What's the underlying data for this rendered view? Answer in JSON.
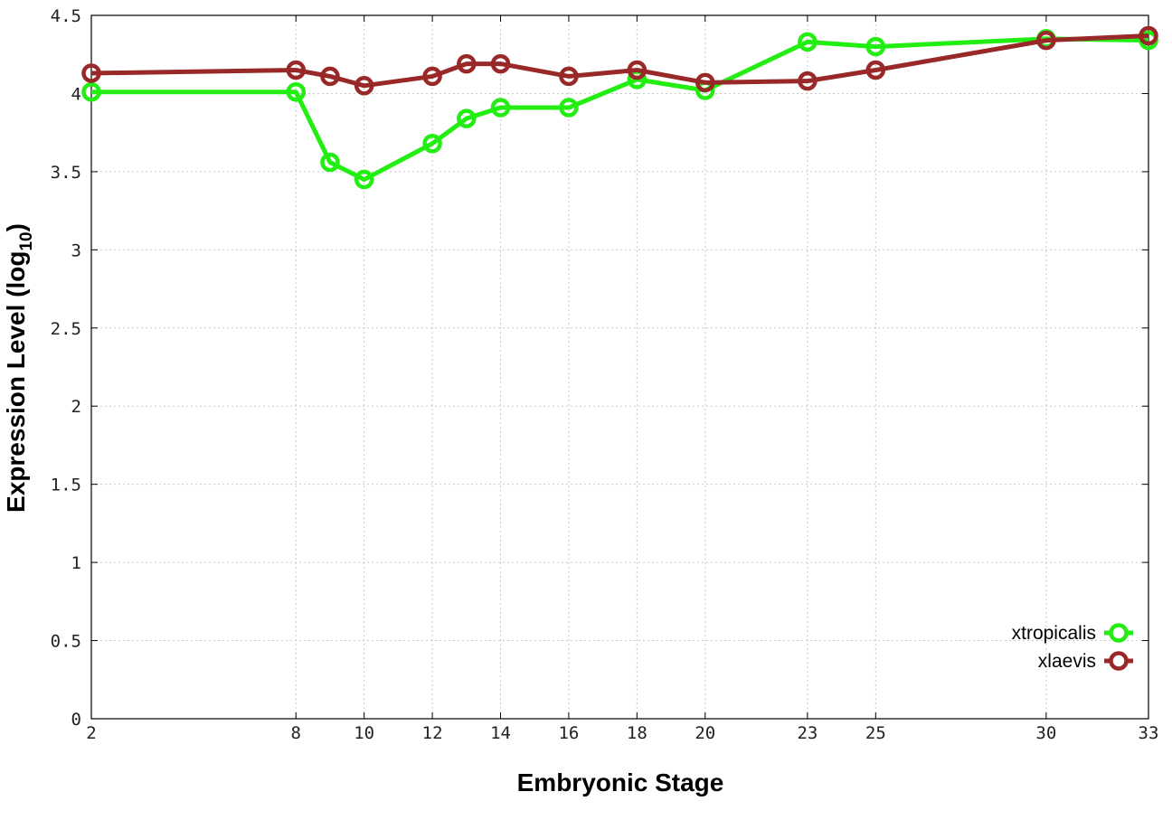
{
  "chart_data": {
    "type": "line",
    "title": "",
    "xlabel": "Embryonic Stage",
    "ylabel": {
      "main": "Expression Level (log",
      "sub": "10",
      "close": ")"
    },
    "x_ticks": [
      2,
      8,
      10,
      12,
      14,
      16,
      18,
      20,
      23,
      25,
      30,
      33
    ],
    "x_tick_labels": [
      "2",
      "8",
      "10",
      "12",
      "14",
      "16",
      "18",
      "20",
      "23",
      "25",
      "30",
      "33"
    ],
    "y_ticks": [
      0,
      0.5,
      1,
      1.5,
      2,
      2.5,
      3,
      3.5,
      4,
      4.5
    ],
    "y_tick_labels": [
      "0",
      "0.5",
      "1",
      "1.5",
      "2",
      "2.5",
      "3",
      "3.5",
      "4",
      "4.5"
    ],
    "ylim": [
      0,
      4.5
    ],
    "grid": true,
    "legend_position": "bottom-right",
    "series": [
      {
        "name": "xtropicalis",
        "color": "#22ee11",
        "x": [
          2,
          8,
          9,
          10,
          12,
          13,
          14,
          16,
          18,
          20,
          23,
          25,
          30,
          33
        ],
        "values": [
          4.01,
          4.01,
          3.56,
          3.45,
          3.68,
          3.84,
          3.91,
          3.91,
          4.09,
          4.02,
          4.33,
          4.3,
          4.35,
          4.34
        ]
      },
      {
        "name": "xlaevis",
        "color": "#992828",
        "x": [
          2,
          8,
          9,
          10,
          12,
          13,
          14,
          16,
          18,
          20,
          23,
          25,
          30,
          33
        ],
        "values": [
          4.13,
          4.15,
          4.11,
          4.05,
          4.11,
          4.19,
          4.19,
          4.11,
          4.15,
          4.07,
          4.08,
          4.15,
          4.34,
          4.37
        ]
      }
    ]
  }
}
